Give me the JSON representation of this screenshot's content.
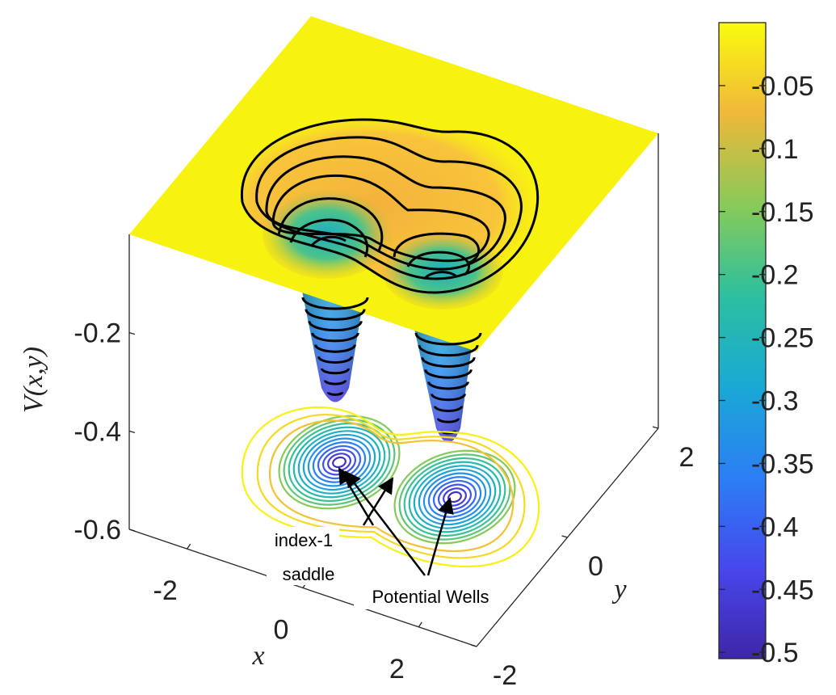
{
  "chart_data": {
    "type": "surface",
    "xlabel": "x",
    "ylabel": "y",
    "zlabel": "V(x,y)",
    "xlim": [
      -3,
      3
    ],
    "xticks": [
      -2,
      0,
      2
    ],
    "ylim": [
      -2,
      2
    ],
    "yticks": [
      -2,
      0,
      2
    ],
    "zlim": [
      -0.6,
      0
    ],
    "zticks": [
      -0.6,
      -0.4,
      -0.2
    ],
    "colorbar": {
      "clim": [
        -0.505,
        0
      ],
      "ticks": [
        -0.5,
        -0.45,
        -0.4,
        -0.35,
        -0.3,
        -0.25,
        -0.2,
        -0.15,
        -0.1,
        -0.05
      ]
    },
    "annotations": [
      "index-1",
      "saddle",
      "Potential Wells"
    ]
  }
}
